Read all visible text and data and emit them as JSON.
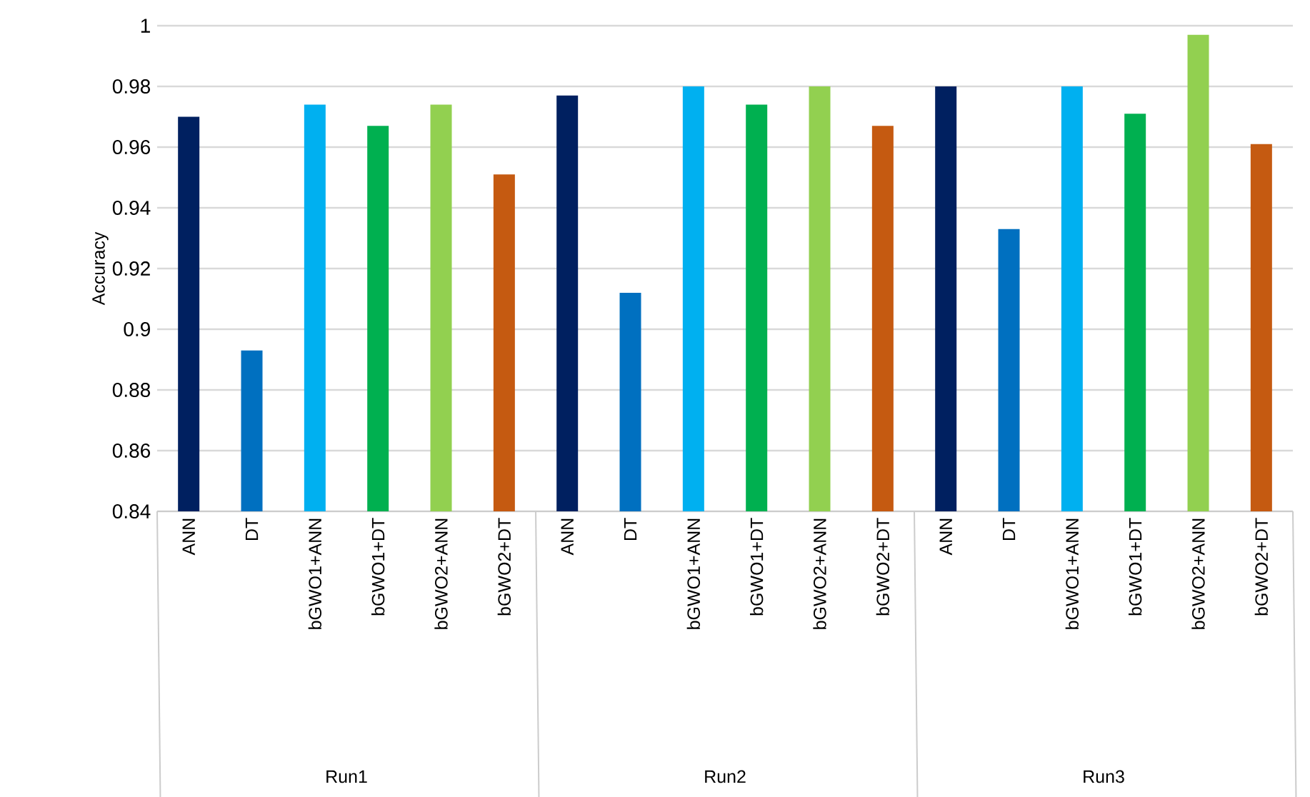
{
  "chart_data": {
    "type": "bar",
    "ylabel": "Accuracy",
    "categories": [
      "ANN",
      "DT",
      "bGWO1+ANN",
      "bGWO1+DT",
      "bGWO2+ANN",
      "bGWO2+DT",
      "ANN",
      "DT",
      "bGWO1+ANN",
      "bGWO1+DT",
      "bGWO2+ANN",
      "bGWO2+DT",
      "ANN",
      "DT",
      "bGWO1+ANN",
      "bGWO1+DT",
      "bGWO2+ANN",
      "bGWO2+DT"
    ],
    "values": [
      0.97,
      0.893,
      0.974,
      0.967,
      0.974,
      0.951,
      0.977,
      0.912,
      0.98,
      0.974,
      0.98,
      0.967,
      0.98,
      0.933,
      0.98,
      0.971,
      0.997,
      0.961
    ],
    "colors": [
      "#002060",
      "#0070c0",
      "#00b0f0",
      "#00b050",
      "#92d050",
      "#c55a11",
      "#002060",
      "#0070c0",
      "#00b0f0",
      "#00b050",
      "#92d050",
      "#c55a11",
      "#002060",
      "#0070c0",
      "#00b0f0",
      "#00b050",
      "#92d050",
      "#c55a11"
    ],
    "ylim": [
      0.84,
      1
    ],
    "yticks": [
      0.84,
      0.86,
      0.88,
      0.9,
      0.92,
      0.94,
      0.96,
      0.98,
      1
    ],
    "grid": "y",
    "annotations": [
      "Run1",
      "Run2",
      "Run3"
    ]
  }
}
